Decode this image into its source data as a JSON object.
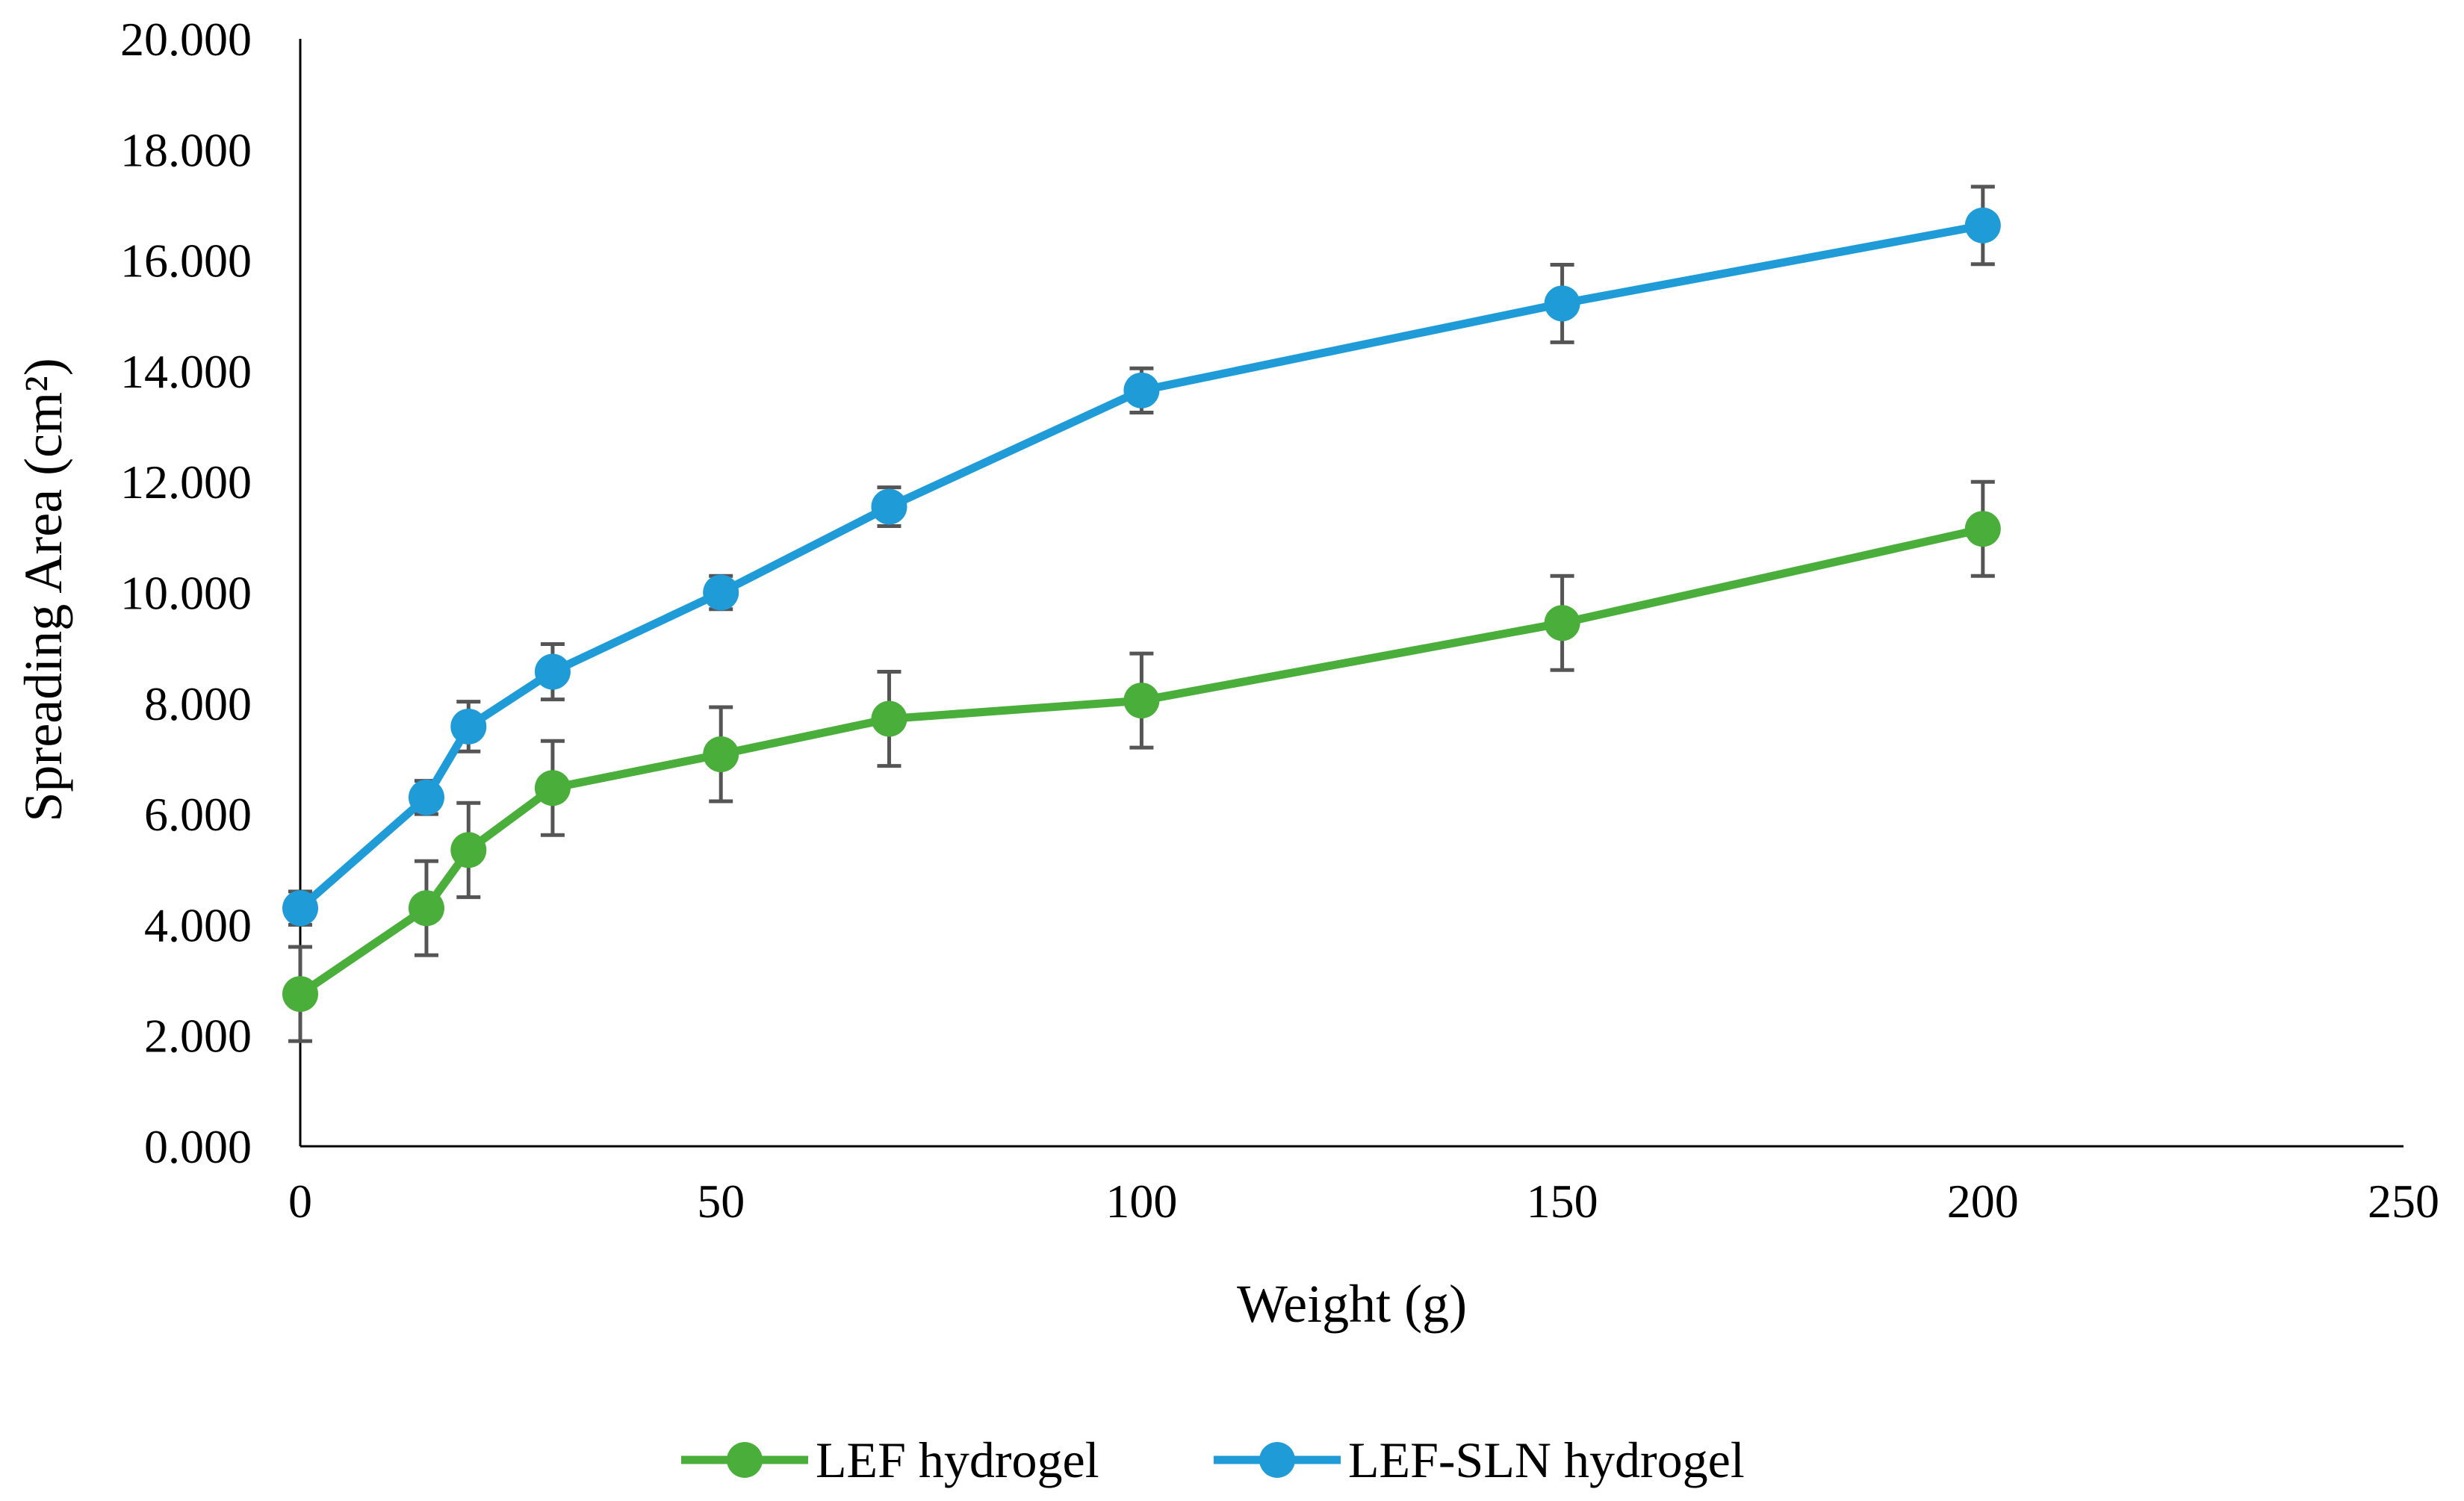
{
  "chart_data": {
    "type": "line",
    "title": "",
    "xlabel": "Weight (g)",
    "ylabel": "Spreading Area (cm²)",
    "xlim": [
      0,
      250
    ],
    "ylim": [
      0,
      20
    ],
    "x_ticks": [
      0,
      50,
      100,
      150,
      200,
      250
    ],
    "x_tick_labels": [
      "0",
      "50",
      "100",
      "150",
      "200",
      "250"
    ],
    "y_ticks": [
      0,
      2,
      4,
      6,
      8,
      10,
      12,
      14,
      16,
      18,
      20
    ],
    "y_tick_labels": [
      "0.000",
      "2.000",
      "4.000",
      "6.000",
      "8.000",
      "10.000",
      "12.000",
      "14.000",
      "16.000",
      "18.000",
      "20.000"
    ],
    "grid": false,
    "legend_position": "bottom",
    "series": [
      {
        "name": "LEF hydrogel",
        "color": "#4aae3b",
        "x": [
          0,
          15,
          20,
          30,
          50,
          70,
          100,
          150,
          200
        ],
        "y": [
          2.75,
          4.3,
          5.35,
          6.47,
          7.08,
          7.72,
          8.05,
          9.45,
          11.15
        ],
        "error": [
          0.85,
          0.85,
          0.85,
          0.85,
          0.85,
          0.85,
          0.85,
          0.85,
          0.85
        ]
      },
      {
        "name": "LEF-SLN hydrogel",
        "color": "#1f9cd8",
        "x": [
          0,
          15,
          20,
          30,
          50,
          70,
          100,
          150,
          200
        ],
        "y": [
          4.3,
          6.3,
          7.58,
          8.57,
          10.0,
          11.55,
          13.65,
          15.22,
          16.63
        ],
        "error": [
          0.3,
          0.3,
          0.45,
          0.5,
          0.3,
          0.35,
          0.4,
          0.7,
          0.7
        ]
      }
    ]
  }
}
